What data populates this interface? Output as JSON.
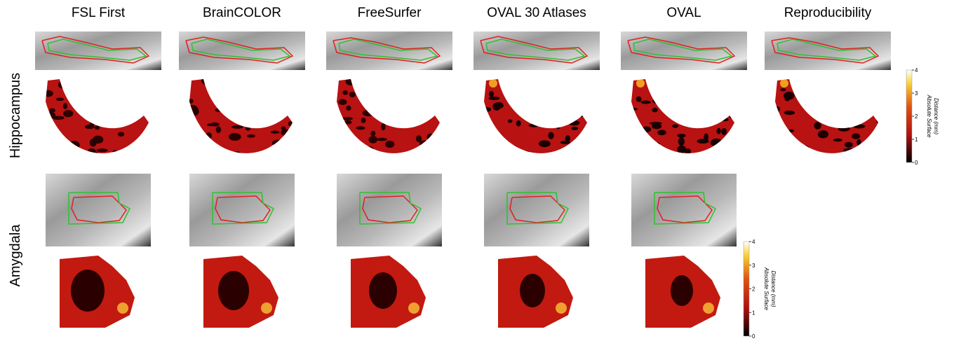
{
  "columns": [
    "FSL First",
    "BrainCOLOR",
    "FreeSurfer",
    "OVAL 30 Atlases",
    "OVAL",
    "Reproducibility"
  ],
  "rows": [
    "Hippocampus",
    "Amygdala"
  ],
  "colorbars": [
    {
      "label": [
        "Absolute Surface",
        "Distance (mm)"
      ],
      "ticks": [
        0,
        1,
        2,
        3,
        4
      ]
    },
    {
      "label": [
        "Absolute Surface",
        "Distance (mm)"
      ],
      "ticks": [
        0,
        1,
        2,
        3,
        4
      ]
    }
  ]
}
